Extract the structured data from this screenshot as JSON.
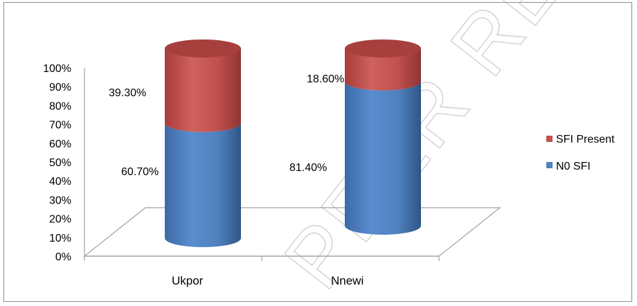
{
  "chart_data": {
    "type": "bar",
    "stacked": true,
    "percent_stacked": true,
    "style": "3d-cylinder",
    "categories": [
      "Ukpor",
      "Nnewi"
    ],
    "series": [
      {
        "name": "N0 SFI",
        "values": [
          60.7,
          81.4
        ],
        "labels": [
          "60.70%",
          "81.40%"
        ],
        "color": "#4f81bd"
      },
      {
        "name": "SFI Present",
        "values": [
          39.3,
          18.6
        ],
        "labels": [
          "39.30%",
          "18.60%"
        ],
        "color": "#c0504d"
      }
    ],
    "y_ticks": [
      "0%",
      "10%",
      "20%",
      "30%",
      "40%",
      "50%",
      "60%",
      "70%",
      "80%",
      "90%",
      "100%"
    ],
    "ylim": [
      0,
      100
    ],
    "legend": {
      "position": "right",
      "entries": [
        "SFI Present",
        "N0 SFI"
      ]
    },
    "watermark": "PEER REVIEW"
  }
}
